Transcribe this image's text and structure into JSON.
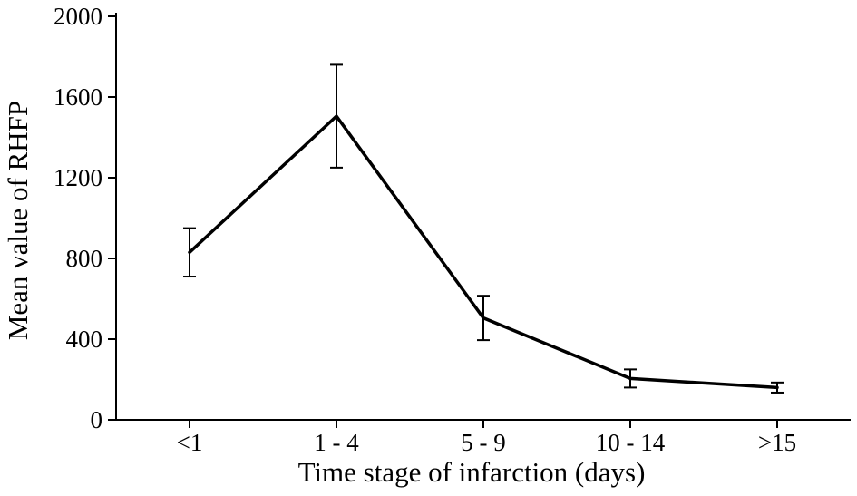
{
  "chart_data": {
    "type": "line",
    "categories": [
      "<1",
      "1 - 4",
      "5 - 9",
      "10 - 14",
      ">15"
    ],
    "values": [
      830,
      1505,
      505,
      205,
      160
    ],
    "errors": [
      120,
      255,
      110,
      45,
      25
    ],
    "title": "",
    "xlabel": "Time stage of infarction (days)",
    "ylabel": "Mean value of RHFP",
    "ylim": [
      0,
      2000
    ],
    "yticks": [
      0,
      400,
      800,
      1200,
      1600,
      2000
    ],
    "legend": [],
    "grid": false,
    "line_color": "#000000",
    "axis_color": "#000000",
    "background": "#ffffff"
  }
}
